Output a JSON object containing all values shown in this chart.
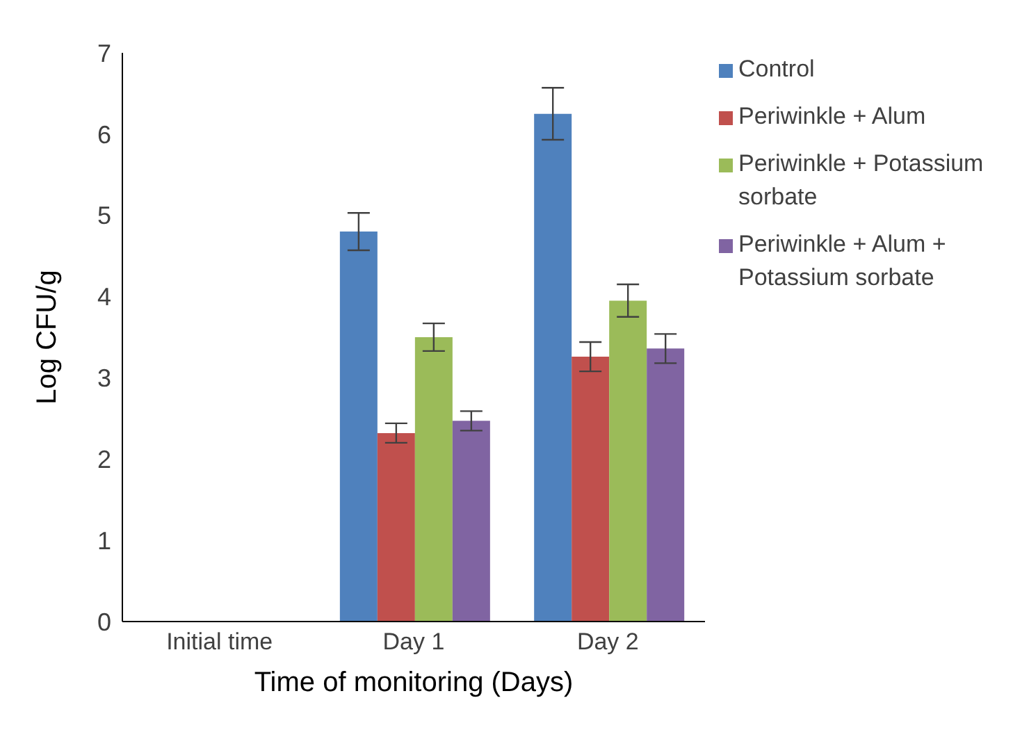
{
  "chart_data": {
    "type": "bar",
    "xlabel": "Time of monitoring (Days)",
    "ylabel": "Log CFU/g",
    "categories": [
      "Initial time",
      "Day 1",
      "Day 2"
    ],
    "series": [
      {
        "name": "Control",
        "color": "#4f81bd",
        "values": [
          0,
          4.8,
          6.25
        ],
        "errors": [
          0,
          0.23,
          0.32
        ]
      },
      {
        "name": "Periwinkle + Alum",
        "color": "#c0504d",
        "values": [
          0,
          2.32,
          3.26
        ],
        "errors": [
          0,
          0.12,
          0.18
        ]
      },
      {
        "name": "Periwinkle + Potassium sorbate",
        "color": "#9bbb59",
        "values": [
          0,
          3.5,
          3.95
        ],
        "errors": [
          0,
          0.17,
          0.2
        ]
      },
      {
        "name": "Periwinkle + Alum + Potassium sorbate",
        "color": "#8064a2",
        "values": [
          0,
          2.47,
          3.36
        ],
        "errors": [
          0,
          0.12,
          0.18
        ]
      }
    ],
    "ylim": [
      0,
      7
    ],
    "yticks": [
      0,
      1,
      2,
      3,
      4,
      5,
      6,
      7
    ],
    "grid": false,
    "legend": "top right"
  }
}
